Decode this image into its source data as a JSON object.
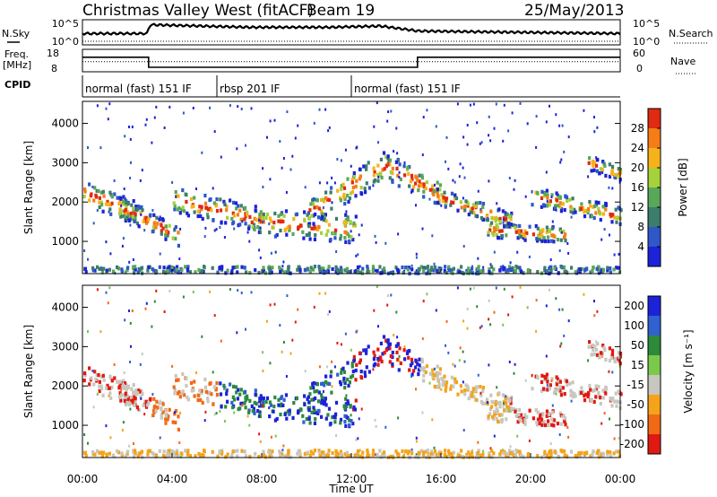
{
  "chart_data": {
    "type": "heatmap",
    "title": "Christmas Valley West (fitACF)",
    "beam": "Beam 19",
    "date": "25/May/2013",
    "xlabel": "Time UT",
    "x_ticks": [
      "00:00",
      "04:00",
      "08:00",
      "12:00",
      "16:00",
      "20:00",
      "00:00"
    ],
    "x_tick_hours": [
      0,
      4,
      8,
      12,
      16,
      20,
      24
    ],
    "xlim_hours": [
      0,
      24
    ],
    "noise_panel": {
      "left_label": "N.Sky",
      "right_label": "N.Search",
      "left_ticks": [
        "10^5",
        "10^0"
      ],
      "right_ticks": [
        "10^5",
        "10^0"
      ],
      "sky_level": [
        [
          0,
          0.55
        ],
        [
          2.9,
          0.55
        ],
        [
          3.0,
          0.2
        ],
        [
          7.5,
          0.3
        ],
        [
          11,
          0.3
        ],
        [
          13.3,
          0.25
        ],
        [
          15,
          0.45
        ],
        [
          24,
          0.55
        ]
      ]
    },
    "freq_panel": {
      "left_label_1": "Freq.",
      "left_label_2": "[MHz]",
      "right_label": "Nave",
      "left_ticks": [
        "18",
        "8"
      ],
      "right_ticks": [
        "60",
        "0"
      ],
      "freq_steps": [
        [
          0,
          0.35
        ],
        [
          2.95,
          0.35
        ],
        [
          2.95,
          0.8
        ],
        [
          14.95,
          0.8
        ],
        [
          14.95,
          0.35
        ],
        [
          24,
          0.35
        ]
      ],
      "nave_level": 0.55
    },
    "cpid_panel": {
      "label": "CPID",
      "modes": [
        {
          "label": "normal (fast) 151 IF",
          "start_hour": 0
        },
        {
          "label": "rbsp 201 IF",
          "start_hour": 6
        },
        {
          "label": "normal (fast) 151 IF",
          "start_hour": 12
        }
      ]
    },
    "ylabel": "Slant Range [km]",
    "y_ticks": [
      1000,
      2000,
      3000,
      4000
    ],
    "ylim_km": [
      180,
      4560
    ],
    "series": [
      {
        "name": "Power",
        "colorbar_label": "Power [dB]",
        "colorbar_ticks": [
          4,
          8,
          12,
          16,
          20,
          24,
          28
        ],
        "colorbar_range": [
          0,
          32
        ],
        "colors": [
          "#1c22d8",
          "#2f57c9",
          "#3d7d6c",
          "#59a75a",
          "#a5d13b",
          "#f7b21a",
          "#f57c16",
          "#e02a12"
        ]
      },
      {
        "name": "Velocity",
        "colorbar_label": "Velocity [m s⁻¹]",
        "colorbar_ticks": [
          "200",
          "100",
          "50",
          "15",
          "-15",
          "-50",
          "-100",
          "-200"
        ],
        "colors": [
          "#1c22d8",
          "#2f61d0",
          "#2c8a3a",
          "#7ac94a",
          "#c7c7c0",
          "#f4a31a",
          "#f06a16",
          "#e01a12"
        ]
      }
    ],
    "echo_bands": [
      {
        "t0": 0.0,
        "t1": 2.8,
        "r_start": 2250,
        "r_end": 1600,
        "w": 420
      },
      {
        "t0": 1.5,
        "t1": 4.3,
        "r_start": 1900,
        "r_end": 1100,
        "w": 350
      },
      {
        "t0": 4.0,
        "t1": 8.0,
        "r_start": 2050,
        "r_end": 1550,
        "w": 450
      },
      {
        "t0": 7.5,
        "t1": 12.2,
        "r_start": 1500,
        "r_end": 1300,
        "w": 500
      },
      {
        "t0": 10.0,
        "t1": 13.5,
        "r_start": 1700,
        "r_end": 2950,
        "w": 520
      },
      {
        "t0": 13.5,
        "t1": 16.0,
        "r_start": 2900,
        "r_end": 2200,
        "w": 480
      },
      {
        "t0": 15.5,
        "t1": 19.2,
        "r_start": 2200,
        "r_end": 1500,
        "w": 300
      },
      {
        "t0": 18.0,
        "t1": 21.5,
        "r_start": 1300,
        "r_end": 1150,
        "w": 280
      },
      {
        "t0": 20.0,
        "t1": 24.0,
        "r_start": 2150,
        "r_end": 1650,
        "w": 320
      },
      {
        "t0": 22.5,
        "t1": 24.0,
        "r_start": 3000,
        "r_end": 2700,
        "w": 250
      }
    ]
  }
}
